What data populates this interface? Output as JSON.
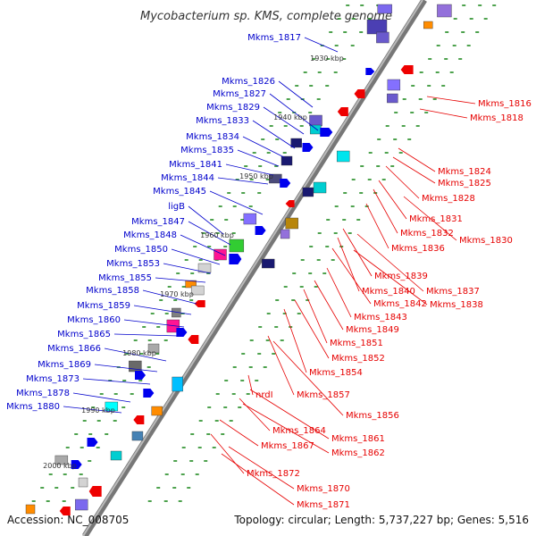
{
  "title": "Mycobacterium sp. KMS, complete genome",
  "footer": {
    "accession": "Accession: NC_008705",
    "summary": "Topology: circular; Length: 5,737,227 bp; Genes: 5,516"
  },
  "kbp_labels": [
    "1930 kbp",
    "1940 kbp",
    "1950 kbp",
    "1960 kbp",
    "1970 kbp",
    "1980 kbp",
    "1990 kbp",
    "2000 kbp"
  ],
  "left_genes": [
    "Mkms_1817",
    "Mkms_1826",
    "Mkms_1827",
    "Mkms_1829",
    "Mkms_1833",
    "Mkms_1834",
    "Mkms_1835",
    "Mkms_1841",
    "Mkms_1844",
    "Mkms_1845",
    "ligB",
    "Mkms_1847",
    "Mkms_1848",
    "Mkms_1850",
    "Mkms_1853",
    "Mkms_1855",
    "Mkms_1858",
    "Mkms_1859",
    "Mkms_1860",
    "Mkms_1865",
    "Mkms_1866",
    "Mkms_1869",
    "Mkms_1873",
    "Mkms_1878",
    "Mkms_1880"
  ],
  "right_genes": [
    "Mkms_1816",
    "Mkms_1818",
    "Mkms_1824",
    "Mkms_1825",
    "Mkms_1828",
    "Mkms_1831",
    "Mkms_1832",
    "Mkms_1830",
    "Mkms_1836",
    "Mkms_1839",
    "Mkms_1840",
    "Mkms_1837",
    "Mkms_1842",
    "Mkms_1838",
    "Mkms_1843",
    "Mkms_1849",
    "Mkms_1851",
    "Mkms_1852",
    "Mkms_1854",
    "Mkms_1857",
    "Mkms_1856",
    "nrdI",
    "Mkms_1864",
    "Mkms_1861",
    "Mkms_1867",
    "Mkms_1862",
    "Mkms_1872",
    "Mkms_1870",
    "Mkms_1871"
  ],
  "colors": {
    "blue_label": "#0000cc",
    "red_label": "#e60000",
    "forward_gene": "#0000ee",
    "reverse_gene": "#ee0000",
    "backbone": "#888888",
    "tick": "#228b22"
  }
}
